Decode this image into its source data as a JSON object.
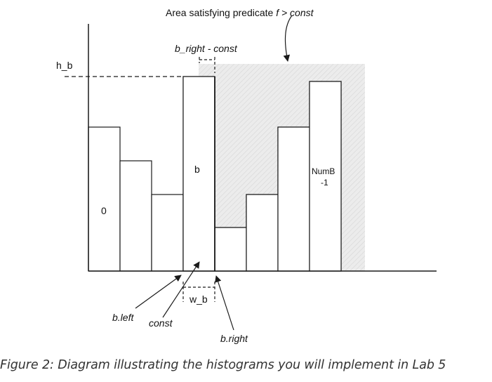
{
  "diagram": {
    "title": "Area satisfying predicate f > const",
    "title_prefix": "Area satisfying predicate ",
    "title_math": "f > const",
    "bracket_top_label": "b_right - const",
    "h_label": "h_b",
    "bin_first_label": "0",
    "bin_b_label": "b",
    "bin_last_label_line1": "NumB",
    "bin_last_label_line2": "-1",
    "width_label": "w_b",
    "b_left_label": "b.left",
    "const_label": "const",
    "b_right_label": "b.right"
  },
  "caption": "Figure 2: Diagram illustrating the histograms you will implement in Lab 5",
  "colors": {
    "shade": "#e6e6e6",
    "hatch": "#cfcfcf"
  }
}
